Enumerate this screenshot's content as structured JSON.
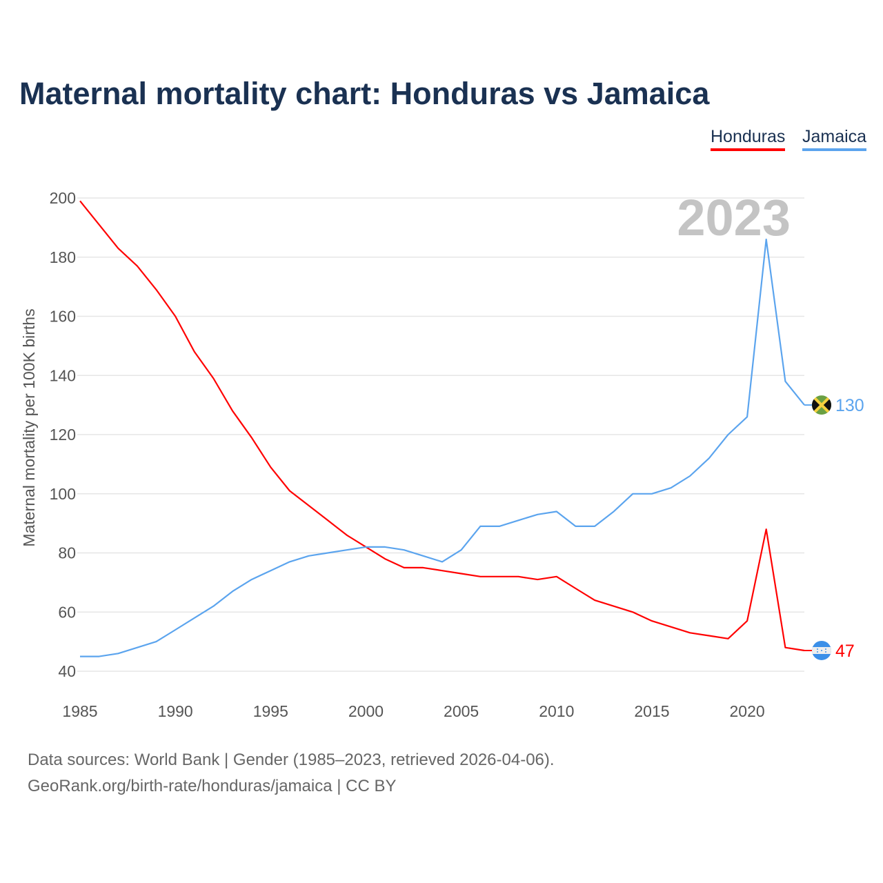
{
  "title": "Maternal mortality chart: Honduras vs Jamaica",
  "legend": [
    {
      "label": "Honduras",
      "color": "#ff0000"
    },
    {
      "label": "Jamaica",
      "color": "#5ba4ee"
    }
  ],
  "footer": {
    "line1": "Data sources: World Bank | Gender (1985–2023, retrieved 2026-04-06).",
    "line2": "GeoRank.org/birth-rate/honduras/jamaica | CC BY"
  },
  "chart_data": {
    "type": "line",
    "title": "Maternal mortality chart: Honduras vs Jamaica",
    "xlabel": "",
    "ylabel": "Maternal mortality per 100K births",
    "year_label": "2023",
    "xlim": [
      1985,
      2023
    ],
    "ylim": [
      40,
      200
    ],
    "x_ticks": [
      1985,
      1990,
      1995,
      2000,
      2005,
      2010,
      2015,
      2020
    ],
    "y_ticks": [
      40,
      60,
      80,
      100,
      120,
      140,
      160,
      180,
      200
    ],
    "grid": true,
    "legend_position": "top-right",
    "x": [
      1985,
      1986,
      1987,
      1988,
      1989,
      1990,
      1991,
      1992,
      1993,
      1994,
      1995,
      1996,
      1997,
      1998,
      1999,
      2000,
      2001,
      2002,
      2003,
      2004,
      2005,
      2006,
      2007,
      2008,
      2009,
      2010,
      2011,
      2012,
      2013,
      2014,
      2015,
      2016,
      2017,
      2018,
      2019,
      2020,
      2021,
      2022,
      2023
    ],
    "series": [
      {
        "name": "Honduras",
        "color": "#ff0000",
        "end_label": "47",
        "values": [
          199,
          191,
          183,
          177,
          169,
          160,
          148,
          139,
          128,
          119,
          109,
          101,
          96,
          91,
          86,
          82,
          78,
          75,
          75,
          74,
          73,
          72,
          72,
          72,
          71,
          72,
          68,
          64,
          62,
          60,
          57,
          55,
          53,
          52,
          51,
          57,
          88,
          48,
          47
        ]
      },
      {
        "name": "Jamaica",
        "color": "#5ba4ee",
        "end_label": "130",
        "values": [
          45,
          45,
          46,
          48,
          50,
          54,
          58,
          62,
          67,
          71,
          74,
          77,
          79,
          80,
          81,
          82,
          82,
          81,
          79,
          77,
          81,
          89,
          89,
          91,
          93,
          94,
          89,
          89,
          94,
          100,
          100,
          102,
          106,
          112,
          120,
          126,
          186,
          138,
          130
        ]
      }
    ]
  }
}
